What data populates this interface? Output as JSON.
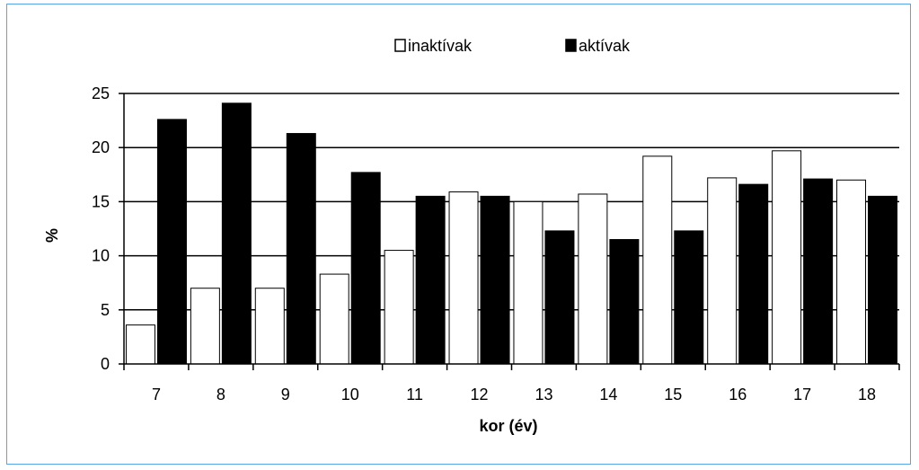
{
  "chart_data": {
    "type": "bar",
    "title": "",
    "xlabel": "kor (év)",
    "ylabel": "%",
    "ylim": [
      0,
      25
    ],
    "yticks": [
      0,
      5,
      10,
      15,
      20,
      25
    ],
    "grid": true,
    "legend_position": "top",
    "categories": [
      "7",
      "8",
      "9",
      "10",
      "11",
      "12",
      "13",
      "14",
      "15",
      "16",
      "17",
      "18"
    ],
    "series": [
      {
        "name": "inaktívak",
        "fill": "#ffffff",
        "values": [
          3.6,
          7.0,
          7.0,
          8.3,
          10.5,
          15.9,
          15.0,
          15.7,
          19.2,
          17.2,
          19.7,
          17.0
        ]
      },
      {
        "name": "aktívak",
        "fill": "#000000",
        "values": [
          22.6,
          24.1,
          21.3,
          17.7,
          15.5,
          15.5,
          12.3,
          11.5,
          12.3,
          16.6,
          17.1,
          15.5
        ]
      }
    ]
  }
}
